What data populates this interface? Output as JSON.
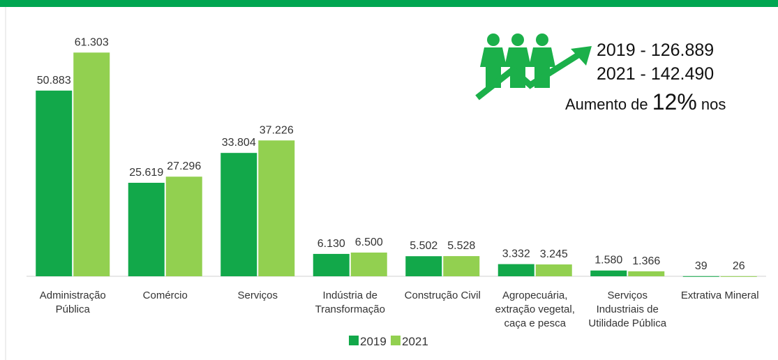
{
  "chart_data": {
    "type": "bar",
    "categories": [
      [
        "Administração",
        "Pública"
      ],
      [
        "Comércio"
      ],
      [
        "Serviços"
      ],
      [
        "Indústria de",
        "Transformação"
      ],
      [
        "Construção Civil"
      ],
      [
        "Agropecuária,",
        "extração vegetal,",
        "caça e pesca"
      ],
      [
        "Serviços",
        "Industriais de",
        "Utilidade Pública"
      ],
      [
        "Extrativa Mineral"
      ]
    ],
    "series": [
      {
        "name": "2019",
        "color": "#12a84a",
        "values": [
          50883,
          25619,
          33804,
          6130,
          5502,
          3332,
          1580,
          39
        ],
        "value_labels": [
          "50.883",
          "25.619",
          "33.804",
          "6.130",
          "5.502",
          "3.332",
          "1.580",
          "39"
        ]
      },
      {
        "name": "2021",
        "color": "#92d050",
        "values": [
          61303,
          27296,
          37226,
          6500,
          5528,
          3245,
          1366,
          26
        ],
        "value_labels": [
          "61.303",
          "27.296",
          "37.226",
          "6.500",
          "5.528",
          "3.245",
          "1.366",
          "26"
        ]
      }
    ],
    "ylim": [
      0,
      65000
    ],
    "annotation": {
      "line1": "2019 - 126.889",
      "line2": "2021 - 142.490",
      "line3": [
        "Aumento de ",
        "12%",
        " nos"
      ]
    }
  }
}
